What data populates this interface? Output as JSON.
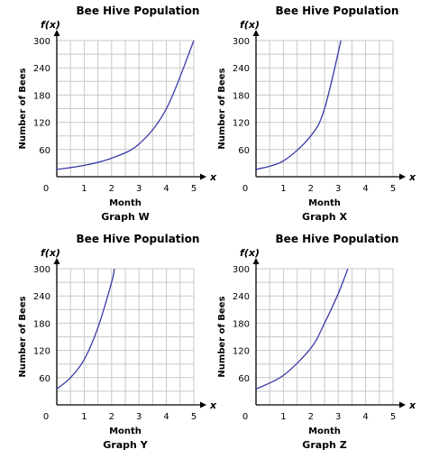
{
  "chart_data": [
    {
      "type": "line",
      "title": "Bee Hive Population",
      "caption": "Graph W",
      "xlabel": "Month",
      "ylabel": "Number of Bees",
      "x_axis_name": "x",
      "y_axis_name": "f(x)",
      "xlim": [
        0,
        5
      ],
      "ylim": [
        0,
        300
      ],
      "xticks": [
        "0",
        "1",
        "2",
        "3",
        "4",
        "5"
      ],
      "yticks": [
        "60",
        "120",
        "180",
        "240",
        "300"
      ],
      "grid": true,
      "series": [
        {
          "x": [
            0,
            1,
            2,
            3,
            4,
            5
          ],
          "y": [
            16,
            25,
            41,
            72,
            150,
            300
          ]
        }
      ]
    },
    {
      "type": "line",
      "title": "Bee Hive Population",
      "caption": "Graph X",
      "xlabel": "Month",
      "ylabel": "Number of Bees",
      "x_axis_name": "x",
      "y_axis_name": "f(x)",
      "xlim": [
        0,
        5
      ],
      "ylim": [
        0,
        300
      ],
      "xticks": [
        "0",
        "1",
        "2",
        "3",
        "4",
        "5"
      ],
      "yticks": [
        "60",
        "120",
        "180",
        "240",
        "300"
      ],
      "grid": true,
      "series": [
        {
          "x": [
            0,
            1,
            2,
            2.5,
            3.1
          ],
          "y": [
            16,
            35,
            90,
            150,
            300
          ]
        }
      ]
    },
    {
      "type": "line",
      "title": "Bee Hive Population",
      "caption": "Graph Y",
      "xlabel": "Month",
      "ylabel": "Number of Bees",
      "x_axis_name": "x",
      "y_axis_name": "f(x)",
      "xlim": [
        0,
        5
      ],
      "ylim": [
        0,
        300
      ],
      "xticks": [
        "0",
        "1",
        "2",
        "3",
        "4",
        "5"
      ],
      "yticks": [
        "60",
        "120",
        "180",
        "240",
        "300"
      ],
      "grid": true,
      "series": [
        {
          "x": [
            0,
            0.5,
            1,
            1.5,
            2,
            2.1
          ],
          "y": [
            35,
            60,
            100,
            170,
            270,
            300
          ]
        }
      ]
    },
    {
      "type": "line",
      "title": "Bee Hive Population",
      "caption": "Graph Z",
      "xlabel": "Month",
      "ylabel": "Number of Bees",
      "x_axis_name": "x",
      "y_axis_name": "f(x)",
      "xlim": [
        0,
        5
      ],
      "ylim": [
        0,
        300
      ],
      "xticks": [
        "0",
        "1",
        "2",
        "3",
        "4",
        "5"
      ],
      "yticks": [
        "60",
        "120",
        "180",
        "240",
        "300"
      ],
      "grid": true,
      "series": [
        {
          "x": [
            0,
            1,
            2,
            2.5,
            3,
            3.35
          ],
          "y": [
            35,
            65,
            125,
            180,
            245,
            300
          ]
        }
      ]
    }
  ],
  "colors": {
    "curve": "#3a3aa8",
    "grid": "#c8c8c8",
    "axis": "#000000"
  }
}
